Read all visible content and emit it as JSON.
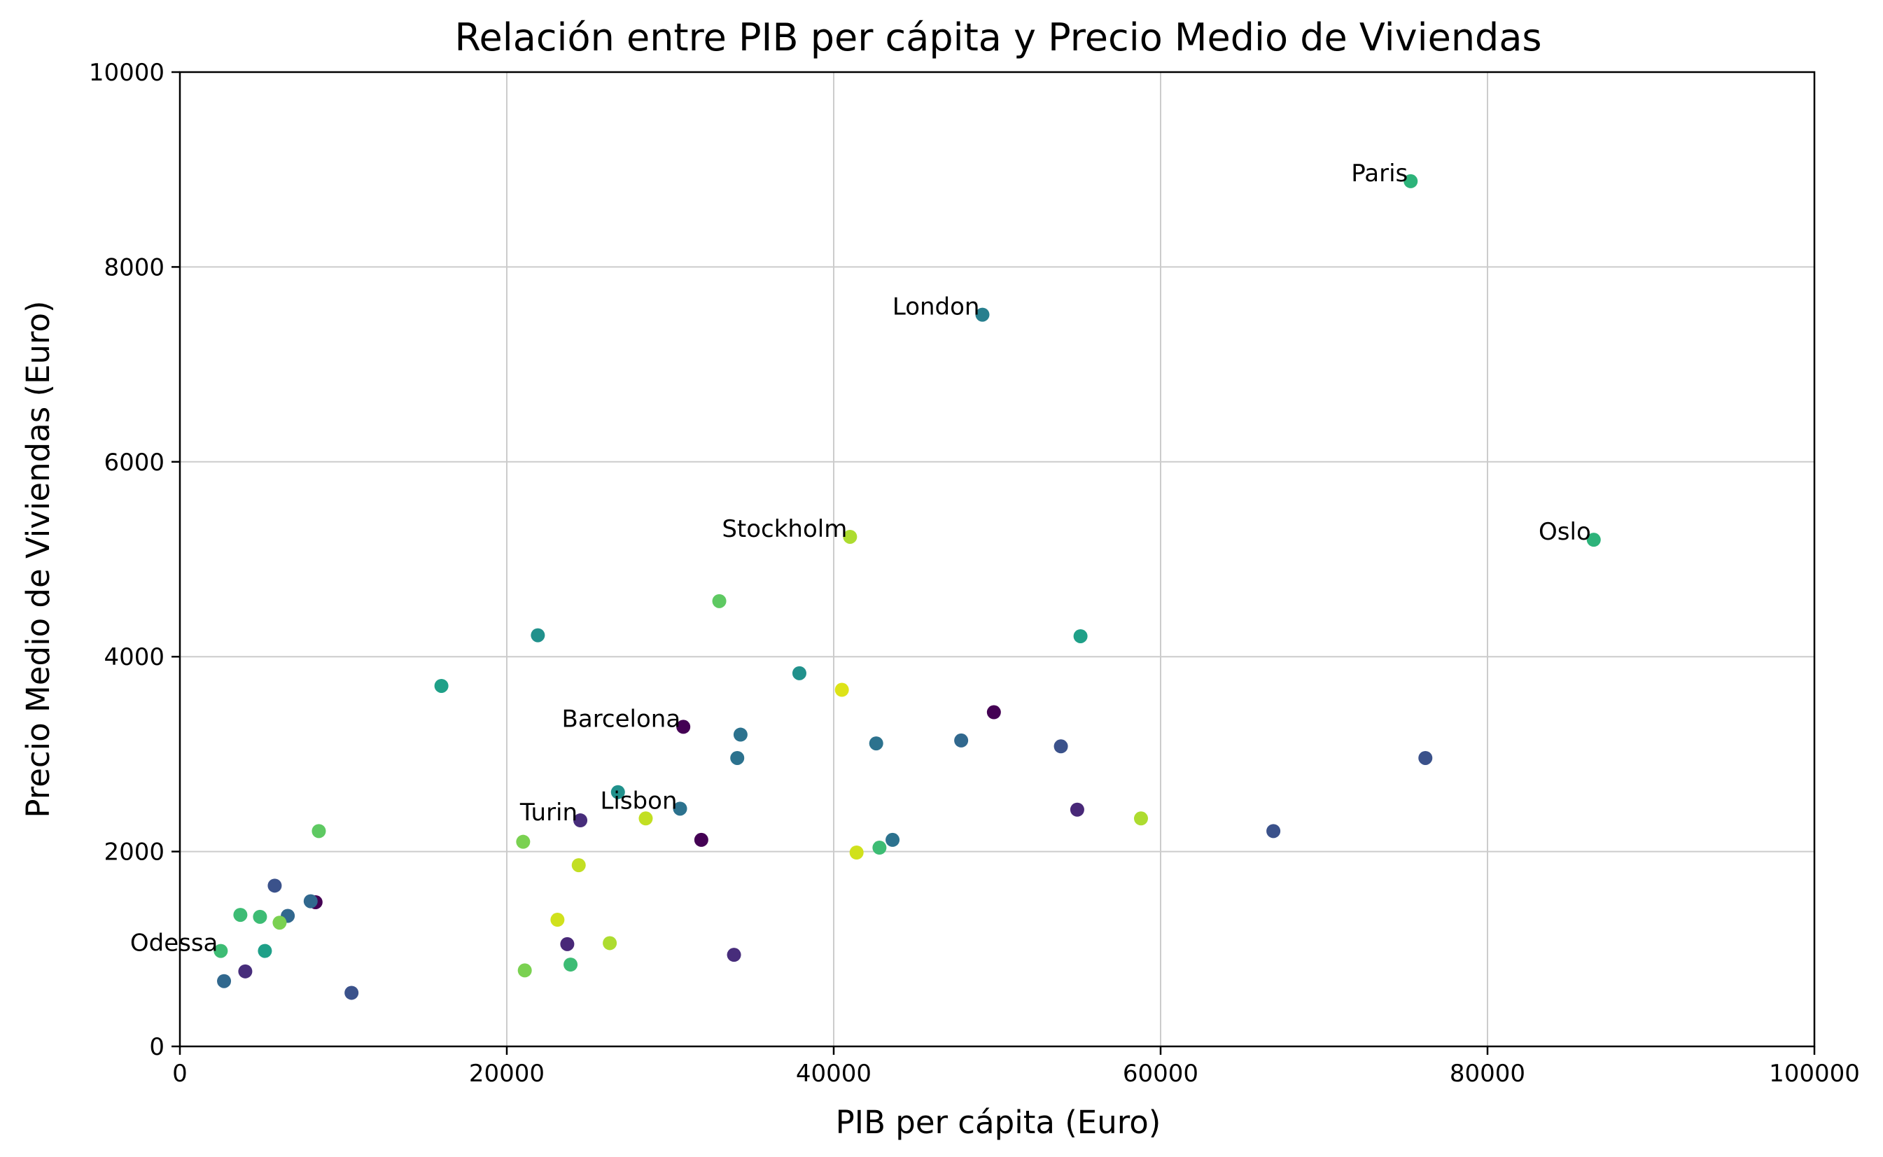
{
  "chart_data": {
    "type": "scatter",
    "title": "Relación entre PIB per cápita y Precio Medio de Viviendas",
    "xlabel": "PIB per cápita (Euro)",
    "ylabel": "Precio Medio de Viviendas (Euro)",
    "xlim": [
      0,
      100000
    ],
    "ylim": [
      0,
      10000
    ],
    "xticks": [
      0,
      20000,
      40000,
      60000,
      80000,
      100000
    ],
    "yticks": [
      0,
      2000,
      4000,
      6000,
      8000,
      10000
    ],
    "grid": true,
    "colormap": "viridis",
    "points": [
      {
        "x": 75300,
        "y": 8880,
        "color": "#2db37a",
        "label": "Paris"
      },
      {
        "x": 49100,
        "y": 7510,
        "color": "#277f8e",
        "label": "London"
      },
      {
        "x": 86500,
        "y": 5200,
        "color": "#2db37a",
        "label": "Oslo"
      },
      {
        "x": 41000,
        "y": 5230,
        "color": "#addc30",
        "label": "Stockholm"
      },
      {
        "x": 30800,
        "y": 3280,
        "color": "#440154",
        "label": "Barcelona"
      },
      {
        "x": 30600,
        "y": 2440,
        "color": "#2c728e",
        "label": "Lisbon"
      },
      {
        "x": 24500,
        "y": 2320,
        "color": "#472d7b",
        "label": "Turin"
      },
      {
        "x": 2500,
        "y": 980,
        "color": "#3dbc74",
        "label": "Odessa"
      },
      {
        "x": 33000,
        "y": 4570,
        "color": "#5ec962",
        "label": ""
      },
      {
        "x": 21900,
        "y": 4220,
        "color": "#21918c",
        "label": ""
      },
      {
        "x": 55100,
        "y": 4210,
        "color": "#1fa088",
        "label": ""
      },
      {
        "x": 16000,
        "y": 3700,
        "color": "#1fa088",
        "label": ""
      },
      {
        "x": 37900,
        "y": 3830,
        "color": "#21918c",
        "label": ""
      },
      {
        "x": 40500,
        "y": 3660,
        "color": "#dde318",
        "label": ""
      },
      {
        "x": 49800,
        "y": 3430,
        "color": "#440154",
        "label": ""
      },
      {
        "x": 34300,
        "y": 3200,
        "color": "#2c728e",
        "label": ""
      },
      {
        "x": 34100,
        "y": 2960,
        "color": "#2c728e",
        "label": ""
      },
      {
        "x": 42600,
        "y": 3110,
        "color": "#2c728e",
        "label": ""
      },
      {
        "x": 47800,
        "y": 3140,
        "color": "#31688e",
        "label": ""
      },
      {
        "x": 53900,
        "y": 3080,
        "color": "#3b528b",
        "label": ""
      },
      {
        "x": 76200,
        "y": 2960,
        "color": "#3b528b",
        "label": ""
      },
      {
        "x": 26800,
        "y": 2610,
        "color": "#21918c",
        "label": ""
      },
      {
        "x": 28500,
        "y": 2340,
        "color": "#c2df23",
        "label": ""
      },
      {
        "x": 54900,
        "y": 2430,
        "color": "#482878",
        "label": ""
      },
      {
        "x": 58800,
        "y": 2340,
        "color": "#addc30",
        "label": ""
      },
      {
        "x": 66900,
        "y": 2210,
        "color": "#3b528b",
        "label": ""
      },
      {
        "x": 8500,
        "y": 2210,
        "color": "#5ec962",
        "label": ""
      },
      {
        "x": 31900,
        "y": 2120,
        "color": "#440154",
        "label": ""
      },
      {
        "x": 43600,
        "y": 2120,
        "color": "#2c728e",
        "label": ""
      },
      {
        "x": 42800,
        "y": 2040,
        "color": "#3dbc74",
        "label": ""
      },
      {
        "x": 41400,
        "y": 1990,
        "color": "#d0e11c",
        "label": ""
      },
      {
        "x": 21000,
        "y": 2100,
        "color": "#7ad151",
        "label": ""
      },
      {
        "x": 24400,
        "y": 1860,
        "color": "#c2df23",
        "label": ""
      },
      {
        "x": 5800,
        "y": 1650,
        "color": "#3b528b",
        "label": ""
      },
      {
        "x": 8300,
        "y": 1480,
        "color": "#440154",
        "label": ""
      },
      {
        "x": 8000,
        "y": 1490,
        "color": "#31688e",
        "label": ""
      },
      {
        "x": 6600,
        "y": 1340,
        "color": "#31688e",
        "label": ""
      },
      {
        "x": 3700,
        "y": 1350,
        "color": "#3dbc74",
        "label": ""
      },
      {
        "x": 4900,
        "y": 1330,
        "color": "#3dbc74",
        "label": ""
      },
      {
        "x": 6100,
        "y": 1270,
        "color": "#7ad151",
        "label": ""
      },
      {
        "x": 23100,
        "y": 1300,
        "color": "#d0e11c",
        "label": ""
      },
      {
        "x": 23700,
        "y": 1050,
        "color": "#482878",
        "label": ""
      },
      {
        "x": 26300,
        "y": 1060,
        "color": "#addc30",
        "label": ""
      },
      {
        "x": 5200,
        "y": 980,
        "color": "#1fa088",
        "label": ""
      },
      {
        "x": 33900,
        "y": 940,
        "color": "#472d7b",
        "label": ""
      },
      {
        "x": 23900,
        "y": 840,
        "color": "#3dbc74",
        "label": ""
      },
      {
        "x": 21100,
        "y": 780,
        "color": "#7ad151",
        "label": ""
      },
      {
        "x": 4000,
        "y": 770,
        "color": "#472d7b",
        "label": ""
      },
      {
        "x": 2700,
        "y": 670,
        "color": "#31688e",
        "label": ""
      },
      {
        "x": 10500,
        "y": 550,
        "color": "#3b528b",
        "label": ""
      }
    ]
  }
}
